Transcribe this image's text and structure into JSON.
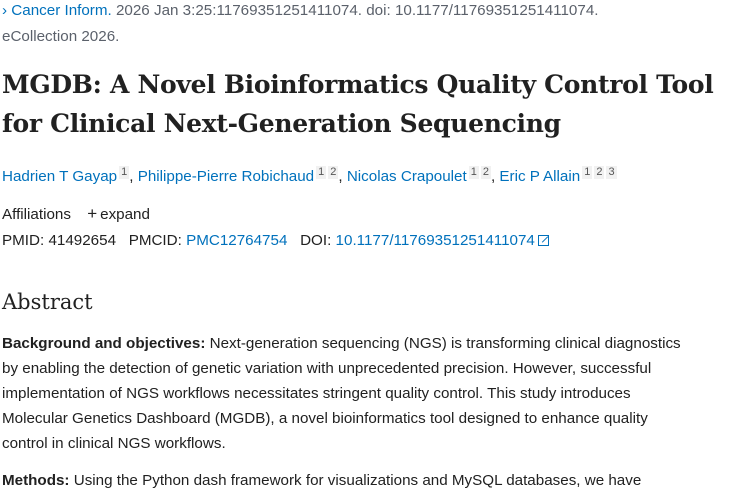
{
  "citation": {
    "journal": "Cancer Inform.",
    "details": " 2026 Jan 3:25:11769351251411074. doi: 10.1177/11769351251411074.",
    "line2": "eCollection 2026."
  },
  "title": {
    "line1": "MGDB: A Novel Bioinformatics Quality Control Tool",
    "line2": "for Clinical Next-Generation Sequencing"
  },
  "authors": [
    {
      "name": "Hadrien T Gayap",
      "affs": [
        "1"
      ]
    },
    {
      "name": "Philippe-Pierre Robichaud",
      "affs": [
        "1",
        "2"
      ]
    },
    {
      "name": "Nicolas Crapoulet",
      "affs": [
        "1",
        "2"
      ]
    },
    {
      "name": "Eric P Allain",
      "affs": [
        "1",
        "2",
        "3"
      ]
    }
  ],
  "affiliations": {
    "label": "Affiliations",
    "expand": "expand"
  },
  "ids": {
    "pmid_label": "PMID:",
    "pmid": "41492654",
    "pmcid_label": "PMCID:",
    "pmcid": "PMC12764754",
    "doi_label": "DOI:",
    "doi": "10.1177/11769351251411074"
  },
  "abstract": {
    "heading": "Abstract",
    "background_label": "Background and objectives:",
    "background_lines": [
      " Next-generation sequencing (NGS) is transforming clinical diagnostics",
      "by enabling the detection of genetic variation with unprecedented precision. However, successful",
      "implementation of NGS workflows necessitates stringent quality control. This study introduces",
      "Molecular Genetics Dashboard (MGDB), a novel bioinformatics tool designed to enhance quality",
      "control in clinical NGS workflows."
    ],
    "methods_label": "Methods:",
    "methods_line": " Using the Python dash framework for visualizations and MySQL databases, we have"
  }
}
